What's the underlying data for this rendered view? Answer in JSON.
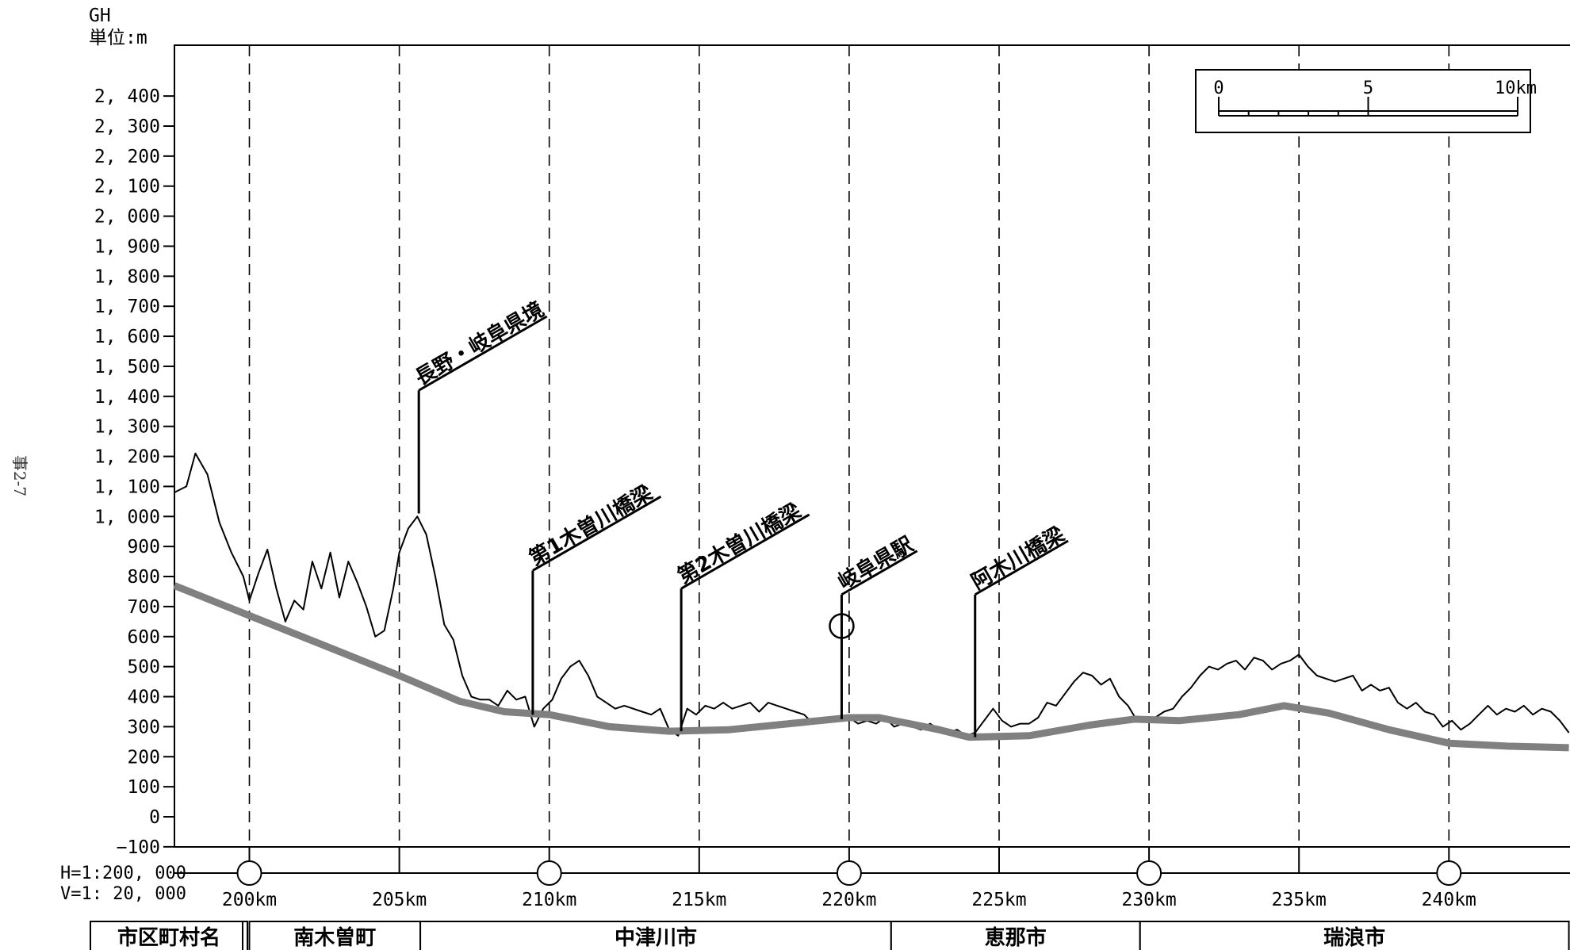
{
  "chart_data": {
    "type": "line",
    "y_unit_label": [
      "GH",
      "単位:m"
    ],
    "y_ticks": [
      2400,
      2300,
      2200,
      2100,
      2000,
      1900,
      1800,
      1700,
      1600,
      1500,
      1400,
      1300,
      1200,
      1100,
      1000,
      900,
      800,
      700,
      600,
      500,
      400,
      300,
      200,
      100,
      0,
      -100
    ],
    "y_tick_labels": [
      "2, 400",
      "2, 300",
      "2, 200",
      "2, 100",
      "2, 000",
      "1, 900",
      "1, 800",
      "1, 700",
      "1, 600",
      "1, 500",
      "1, 400",
      "1, 300",
      "1, 200",
      "1, 100",
      "1, 000",
      "900",
      "800",
      "700",
      "600",
      "500",
      "400",
      "300",
      "200",
      "100",
      "0",
      "−100"
    ],
    "ylim": [
      -200,
      2470
    ],
    "xlim": [
      197.5,
      244
    ],
    "x_ticks": [
      200,
      205,
      210,
      215,
      220,
      225,
      230,
      235,
      240
    ],
    "x_tick_labels": [
      "200km",
      "205km",
      "210km",
      "215km",
      "220km",
      "225km",
      "230km",
      "235km",
      "240km"
    ],
    "grid": "vertical-dashed",
    "scale_text": [
      "H=1:200, 000",
      "V=1: 20, 000"
    ],
    "scale_bar": {
      "labels": [
        "0",
        "5",
        "10km"
      ],
      "km": [
        0,
        5,
        10
      ],
      "placement": "top-right"
    },
    "series": [
      {
        "style": "ground",
        "x": [
          197.5,
          197.9,
          198.2,
          198.6,
          199.0,
          199.4,
          199.8,
          200.0,
          200.3,
          200.6,
          200.9,
          201.2,
          201.5,
          201.8,
          202.1,
          202.4,
          202.7,
          203.0,
          203.3,
          203.6,
          203.9,
          204.2,
          204.5,
          204.8,
          205.0,
          205.3,
          205.6,
          205.9,
          206.2,
          206.5,
          206.8,
          207.1,
          207.4,
          207.7,
          208.0,
          208.3,
          208.6,
          208.9,
          209.2,
          209.5,
          209.8,
          210.1,
          210.4,
          210.7,
          211.0,
          211.3,
          211.6,
          211.9,
          212.2,
          212.5,
          212.8,
          213.1,
          213.4,
          213.7,
          214.0,
          214.3,
          214.6,
          214.9,
          215.2,
          215.5,
          215.8,
          216.1,
          216.4,
          216.7,
          217.0,
          217.3,
          217.6,
          217.9,
          218.2,
          218.5,
          218.8,
          219.1,
          219.4,
          219.7,
          220.0,
          220.3,
          220.6,
          220.9,
          221.2,
          221.5,
          221.8,
          222.1,
          222.4,
          222.7,
          223.0,
          223.3,
          223.6,
          223.9,
          224.2,
          224.5,
          224.8,
          225.1,
          225.4,
          225.7,
          226.0,
          226.3,
          226.6,
          226.9,
          227.2,
          227.5,
          227.8,
          228.1,
          228.4,
          228.7,
          229.0,
          229.3,
          229.6,
          229.9,
          230.2,
          230.5,
          230.8,
          231.1,
          231.4,
          231.7,
          232.0,
          232.3,
          232.6,
          232.9,
          233.2,
          233.5,
          233.8,
          234.1,
          234.4,
          234.7,
          235.0,
          235.3,
          235.6,
          235.9,
          236.2,
          236.5,
          236.8,
          237.1,
          237.4,
          237.7,
          238.0,
          238.3,
          238.6,
          238.9,
          239.2,
          239.5,
          239.8,
          240.1,
          240.4,
          240.7,
          241.0,
          241.3,
          241.6,
          241.9,
          242.2,
          242.5,
          242.8,
          243.1,
          243.4,
          243.7,
          244.0
        ],
        "y": [
          1080,
          1100,
          1210,
          1140,
          980,
          880,
          800,
          720,
          810,
          890,
          760,
          650,
          720,
          690,
          850,
          760,
          880,
          730,
          850,
          780,
          700,
          600,
          620,
          760,
          880,
          960,
          1000,
          940,
          800,
          640,
          590,
          470,
          400,
          390,
          390,
          370,
          420,
          390,
          400,
          300,
          360,
          390,
          460,
          500,
          520,
          470,
          400,
          380,
          360,
          370,
          360,
          350,
          340,
          360,
          290,
          270,
          360,
          340,
          370,
          360,
          380,
          360,
          370,
          380,
          350,
          380,
          370,
          360,
          350,
          340,
          310,
          330,
          320,
          330,
          330,
          310,
          320,
          310,
          330,
          300,
          310,
          300,
          290,
          310,
          290,
          280,
          290,
          270,
          280,
          320,
          360,
          320,
          300,
          310,
          310,
          330,
          380,
          370,
          410,
          450,
          480,
          470,
          440,
          460,
          400,
          370,
          320,
          320,
          330,
          350,
          360,
          400,
          430,
          470,
          500,
          490,
          510,
          520,
          490,
          530,
          520,
          490,
          510,
          520,
          540,
          500,
          470,
          460,
          450,
          460,
          470,
          420,
          440,
          420,
          430,
          380,
          360,
          380,
          350,
          340,
          300,
          320,
          290,
          310,
          340,
          370,
          340,
          360,
          350,
          370,
          340,
          360,
          350,
          320,
          280
        ]
      },
      {
        "style": "alignment",
        "x": [
          197.5,
          200,
          202.5,
          205,
          207,
          208.5,
          210,
          212,
          214,
          216,
          218,
          220,
          221,
          223,
          224,
          226,
          228,
          229.5,
          231,
          233,
          234.5,
          236,
          238,
          240,
          242,
          244
        ],
        "y": [
          770,
          670,
          570,
          470,
          385,
          350,
          340,
          300,
          285,
          290,
          310,
          330,
          330,
          290,
          265,
          270,
          305,
          325,
          320,
          340,
          370,
          345,
          290,
          245,
          235,
          230
        ]
      }
    ],
    "annotations": [
      {
        "label": "長野・岐阜県境",
        "x": 205.65,
        "y_top": 1420,
        "y_base": 1010
      },
      {
        "label": "第1木曽川橋梁",
        "x": 209.45,
        "y_top": 820,
        "y_base": 340
      },
      {
        "label": "第2木曽川橋梁",
        "x": 214.4,
        "y_top": 760,
        "y_base": 285
      },
      {
        "label": "岐阜県駅",
        "x": 219.75,
        "y_top": 740,
        "y_base": 325,
        "circle_y": 635
      },
      {
        "label": "阿木川橋梁",
        "x": 224.2,
        "y_top": 740,
        "y_base": 265
      }
    ],
    "stations_km": [
      200,
      210,
      220,
      230,
      240
    ]
  },
  "municipality_table": {
    "header": "市区町村名",
    "cells": [
      {
        "name": "南木曽町",
        "from_km": 200,
        "to_km": 205.7
      },
      {
        "name": "中津川市",
        "from_km": 205.7,
        "to_km": 221.4
      },
      {
        "name": "恵那市",
        "from_km": 221.4,
        "to_km": 229.7
      },
      {
        "name": "瑞浪市",
        "from_km": 229.7,
        "to_km": 244
      }
    ]
  },
  "side_text": "事2-7"
}
